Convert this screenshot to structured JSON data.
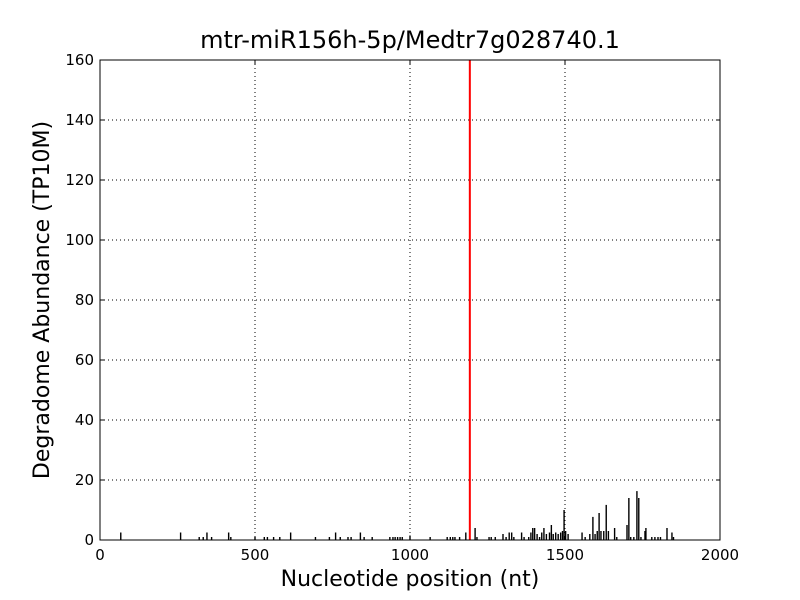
{
  "chart_data": {
    "type": "bar",
    "title": "mtr-miR156h-5p/Medtr7g028740.1",
    "xlabel": "Nucleotide position (nt)",
    "ylabel": "Degradome Abundance (TP10M)",
    "xlim": [
      0,
      2000
    ],
    "ylim": [
      0,
      160
    ],
    "xticks": [
      0,
      500,
      1000,
      1500,
      2000
    ],
    "yticks": [
      0,
      20,
      40,
      60,
      80,
      100,
      120,
      140,
      160
    ],
    "grid": true,
    "bar_color": "#000000",
    "highlight_color": "#ff0000",
    "highlight": {
      "x": 1193,
      "y": 160
    },
    "bars": [
      [
        67,
        2.5
      ],
      [
        260,
        2.5
      ],
      [
        320,
        1
      ],
      [
        333,
        1
      ],
      [
        345,
        2.5
      ],
      [
        360,
        1
      ],
      [
        415,
        2.5
      ],
      [
        422,
        1
      ],
      [
        500,
        1
      ],
      [
        530,
        1
      ],
      [
        540,
        1
      ],
      [
        560,
        1
      ],
      [
        580,
        1
      ],
      [
        615,
        2.5
      ],
      [
        695,
        1
      ],
      [
        740,
        1
      ],
      [
        760,
        2.5
      ],
      [
        775,
        1
      ],
      [
        800,
        1
      ],
      [
        810,
        1
      ],
      [
        840,
        2.5
      ],
      [
        852,
        1
      ],
      [
        878,
        1
      ],
      [
        935,
        1
      ],
      [
        945,
        1
      ],
      [
        952,
        1
      ],
      [
        960,
        1
      ],
      [
        968,
        1
      ],
      [
        975,
        1
      ],
      [
        1000,
        1.5
      ],
      [
        1065,
        1
      ],
      [
        1120,
        1
      ],
      [
        1130,
        1
      ],
      [
        1138,
        1
      ],
      [
        1145,
        1
      ],
      [
        1160,
        1
      ],
      [
        1180,
        2.5
      ],
      [
        1210,
        4
      ],
      [
        1216,
        1
      ],
      [
        1255,
        1
      ],
      [
        1262,
        1
      ],
      [
        1275,
        1
      ],
      [
        1300,
        2
      ],
      [
        1310,
        1
      ],
      [
        1320,
        2.5
      ],
      [
        1328,
        2.5
      ],
      [
        1335,
        1
      ],
      [
        1360,
        2.5
      ],
      [
        1368,
        1
      ],
      [
        1383,
        1
      ],
      [
        1390,
        2.5
      ],
      [
        1396,
        4
      ],
      [
        1402,
        4
      ],
      [
        1410,
        2
      ],
      [
        1418,
        1
      ],
      [
        1425,
        2.5
      ],
      [
        1432,
        4
      ],
      [
        1440,
        2
      ],
      [
        1450,
        2.5
      ],
      [
        1456,
        5
      ],
      [
        1462,
        2
      ],
      [
        1470,
        2.5
      ],
      [
        1478,
        2
      ],
      [
        1486,
        2.5
      ],
      [
        1492,
        3
      ],
      [
        1497,
        10
      ],
      [
        1502,
        3
      ],
      [
        1510,
        2
      ],
      [
        1555,
        2.5
      ],
      [
        1565,
        1
      ],
      [
        1580,
        2
      ],
      [
        1590,
        7.7
      ],
      [
        1597,
        2
      ],
      [
        1604,
        3
      ],
      [
        1610,
        9
      ],
      [
        1616,
        3
      ],
      [
        1625,
        3
      ],
      [
        1633,
        11.7
      ],
      [
        1640,
        3
      ],
      [
        1660,
        4
      ],
      [
        1667,
        1
      ],
      [
        1700,
        5
      ],
      [
        1706,
        14
      ],
      [
        1712,
        1
      ],
      [
        1722,
        1
      ],
      [
        1732,
        16.3
      ],
      [
        1738,
        14
      ],
      [
        1745,
        1
      ],
      [
        1758,
        3
      ],
      [
        1761,
        4
      ],
      [
        1780,
        1
      ],
      [
        1790,
        1
      ],
      [
        1800,
        1
      ],
      [
        1808,
        1
      ],
      [
        1829,
        4
      ],
      [
        1845,
        2.5
      ],
      [
        1850,
        1
      ]
    ]
  }
}
